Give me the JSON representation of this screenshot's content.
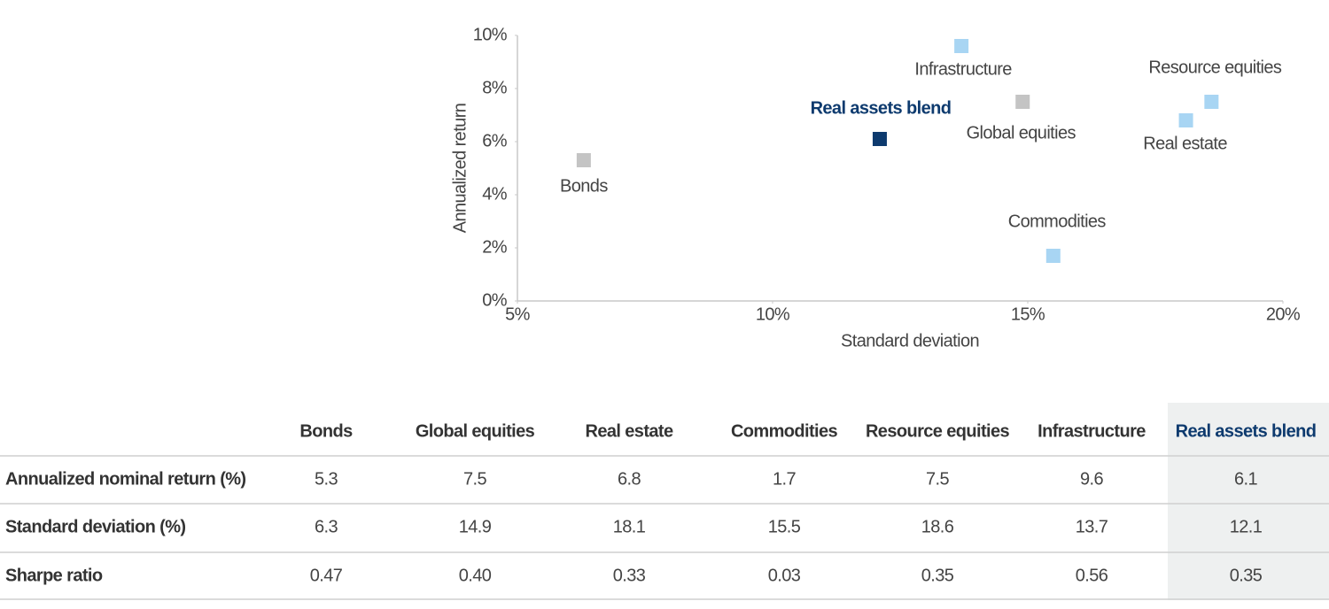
{
  "chart_data": {
    "type": "scatter",
    "xlabel": "Standard deviation",
    "ylabel": "Annualized return",
    "xlim": [
      5,
      20
    ],
    "ylim": [
      0,
      10
    ],
    "xticks": [
      {
        "value": 5,
        "label": "5%"
      },
      {
        "value": 10,
        "label": "10%"
      },
      {
        "value": 15,
        "label": "15%"
      },
      {
        "value": 20,
        "label": "20%"
      }
    ],
    "yticks": [
      {
        "value": 0,
        "label": "0%"
      },
      {
        "value": 2,
        "label": "2%"
      },
      {
        "value": 4,
        "label": "4%"
      },
      {
        "value": 6,
        "label": "6%"
      },
      {
        "value": 8,
        "label": "8%"
      },
      {
        "value": 10,
        "label": "10%"
      }
    ],
    "series": [
      {
        "name": "Bonds",
        "color": "#c4c4c4",
        "x": [
          6.3
        ],
        "y": [
          5.3
        ]
      },
      {
        "name": "Global equities",
        "color": "#c4c4c4",
        "x": [
          14.9
        ],
        "y": [
          7.5
        ]
      },
      {
        "name": "Real estate",
        "color": "#a8d5f3",
        "x": [
          18.1
        ],
        "y": [
          6.8
        ]
      },
      {
        "name": "Commodities",
        "color": "#a8d5f3",
        "x": [
          15.5
        ],
        "y": [
          1.7
        ]
      },
      {
        "name": "Resource equities",
        "color": "#a8d5f3",
        "x": [
          18.6
        ],
        "y": [
          7.5
        ]
      },
      {
        "name": "Infrastructure",
        "color": "#a8d5f3",
        "x": [
          13.7
        ],
        "y": [
          9.6
        ]
      },
      {
        "name": "Real assets blend",
        "color": "#0d3a6e",
        "x": [
          12.1
        ],
        "y": [
          6.1
        ]
      }
    ]
  },
  "table": {
    "columns": [
      "Bonds",
      "Global equities",
      "Real estate",
      "Commodities",
      "Resource equities",
      "Infrastructure",
      "Real assets blend"
    ],
    "rows": [
      {
        "label": "Annualized nominal return (%)",
        "cells": [
          "5.3",
          "7.5",
          "6.8",
          "1.7",
          "7.5",
          "9.6",
          "6.1"
        ]
      },
      {
        "label": "Standard deviation (%)",
        "cells": [
          "6.3",
          "14.9",
          "18.1",
          "15.5",
          "18.6",
          "13.7",
          "12.1"
        ]
      },
      {
        "label": "Sharpe ratio",
        "cells": [
          "0.47",
          "0.40",
          "0.33",
          "0.03",
          "0.35",
          "0.56",
          "0.35"
        ]
      }
    ]
  }
}
